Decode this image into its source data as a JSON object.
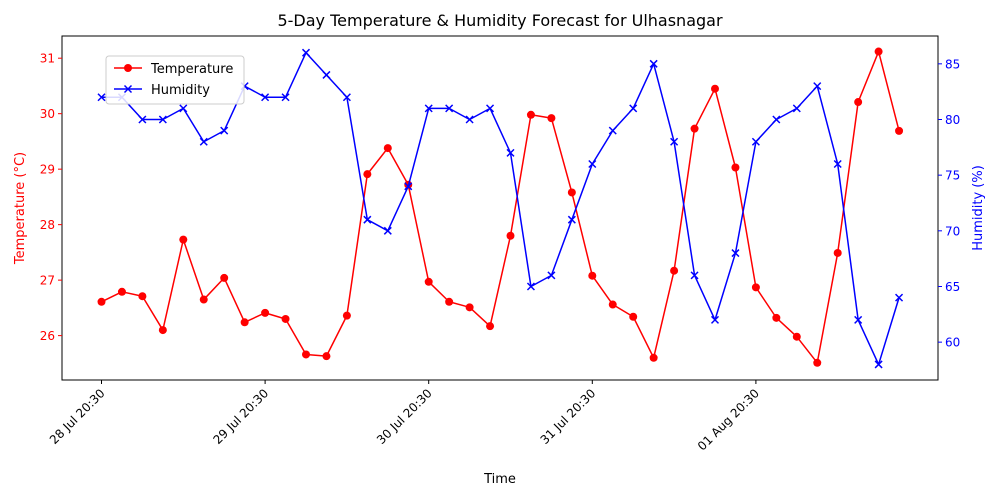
{
  "chart_data": {
    "type": "line",
    "title": "5-Day Temperature & Humidity Forecast for Ulhasnagar",
    "xlabel": "Time",
    "ylabel_left": "Temperature (°C)",
    "ylabel_right": "Humidity (%)",
    "x_tick_labels": [
      "28 Jul 20:30",
      "29 Jul 20:30",
      "30 Jul 20:30",
      "31 Jul 20:30",
      "01 Aug 20:30"
    ],
    "x_tick_indices": [
      0,
      8,
      16,
      24,
      32
    ],
    "ylim_left": [
      25.2,
      31.4
    ],
    "yticks_left": [
      26,
      27,
      28,
      29,
      30,
      31
    ],
    "ylim_right": [
      56.6,
      87.5
    ],
    "yticks_right": [
      60,
      65,
      70,
      75,
      80,
      85
    ],
    "legend_position": "upper-left",
    "series": [
      {
        "name": "Temperature",
        "axis": "left",
        "color": "#ff0000",
        "marker": "circle",
        "values": [
          26.61,
          26.79,
          26.71,
          26.1,
          27.73,
          26.65,
          27.04,
          26.24,
          26.41,
          26.3,
          25.66,
          25.63,
          26.36,
          28.91,
          29.38,
          28.72,
          26.97,
          26.61,
          26.51,
          26.17,
          27.8,
          29.98,
          29.92,
          28.58,
          27.08,
          26.56,
          26.34,
          25.6,
          27.17,
          29.73,
          30.45,
          29.03,
          26.87,
          26.32,
          25.98,
          25.51,
          27.49,
          30.21,
          31.12,
          29.69
        ]
      },
      {
        "name": "Humidity",
        "axis": "right",
        "color": "#0000ff",
        "marker": "x",
        "values": [
          82,
          82,
          80,
          80,
          81,
          78,
          79,
          83,
          82,
          82,
          86,
          84,
          82,
          71,
          70,
          74,
          81,
          81,
          80,
          81,
          77,
          65,
          66,
          71,
          76,
          79,
          81,
          85,
          78,
          66,
          62,
          68,
          78,
          80,
          81,
          83,
          76,
          62,
          58,
          64
        ]
      }
    ]
  }
}
